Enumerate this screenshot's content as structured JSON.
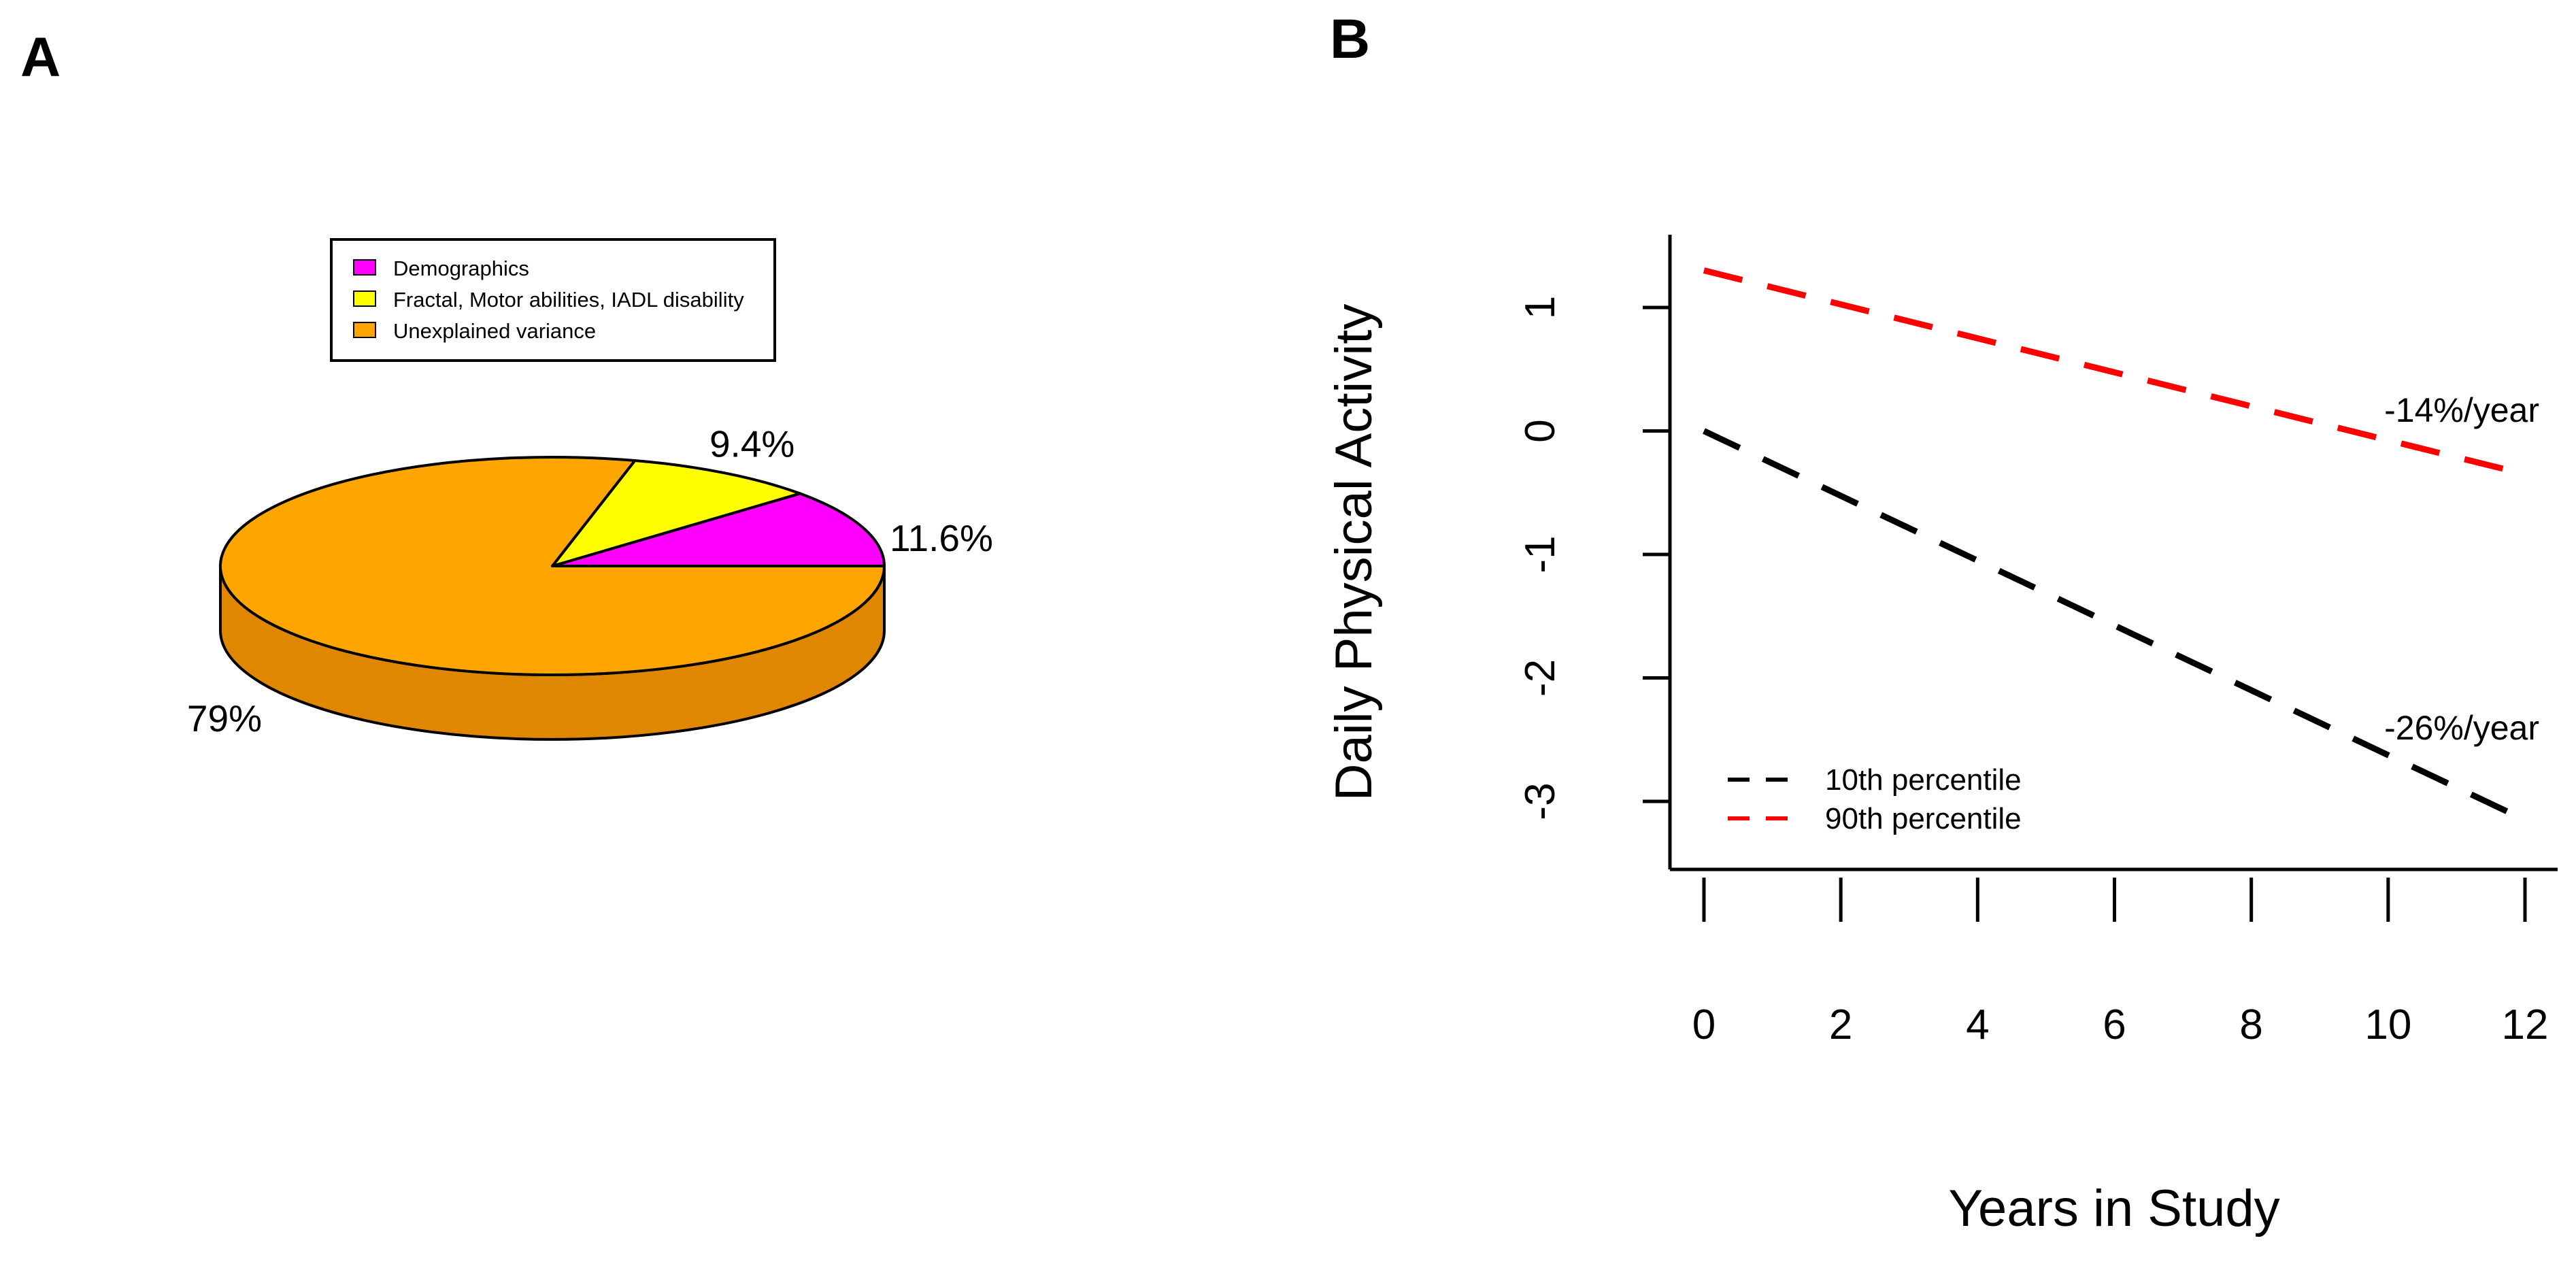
{
  "chart_data": [
    {
      "panel": "A",
      "type": "pie",
      "style": "3d",
      "legend": {
        "placement": "top",
        "entries": [
          "Demographics",
          "Fractal, Motor abilities, IADL disability",
          "Unexplained variance"
        ]
      },
      "slices": [
        {
          "name": "Demographics",
          "value": 11.6,
          "label": "11.6%",
          "color": "#ff00ff"
        },
        {
          "name": "Fractal, Motor abilities, IADL disability",
          "value": 9.4,
          "label": "9.4%",
          "color": "#ffff00"
        },
        {
          "name": "Unexplained variance",
          "value": 79,
          "label": "79%",
          "color": "#ffa500"
        }
      ],
      "side_color": "#e08700"
    },
    {
      "panel": "B",
      "type": "line",
      "xlabel": "Years in Study",
      "ylabel": "Daily Physical Activity",
      "xlim": [
        0,
        12
      ],
      "ylim": [
        -3.5,
        1.6
      ],
      "xticks": [
        0,
        2,
        4,
        6,
        8,
        10,
        12
      ],
      "yticks": [
        1,
        0,
        -1,
        -2,
        -3
      ],
      "grid": false,
      "legend_placement": "bottom-left",
      "series": [
        {
          "name": "10th percentile",
          "color": "#000000",
          "dash": "dashed",
          "x": [
            0,
            12
          ],
          "y": [
            0,
            -3.15
          ],
          "annotation": "-26%/year"
        },
        {
          "name": "90th percentile",
          "color": "#ff0000",
          "dash": "dashed",
          "x": [
            0,
            12
          ],
          "y": [
            1.3,
            -0.35
          ],
          "annotation": "-14%/year"
        }
      ]
    }
  ]
}
